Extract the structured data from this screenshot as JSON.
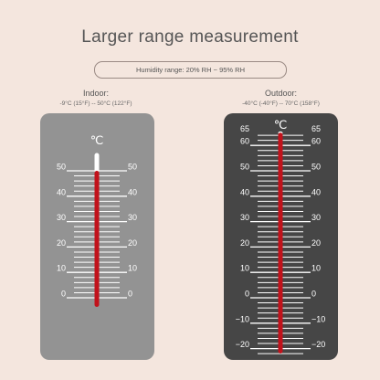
{
  "title": "Larger range measurement",
  "humidity_range": "Humidity range: 20% RH ~ 95% RH",
  "thermometers": [
    {
      "name": "Indoor:",
      "range": "-9°C (15°F) -- 50°C (122°F)",
      "unit": "℃",
      "panel_color": "#939393",
      "scale_labels": [
        "0",
        "10",
        "20",
        "30",
        "40",
        "50"
      ],
      "reading": 50
    },
    {
      "name": "Outdoor:",
      "range": "-40°C (-40°F) -- 70°C (158°F)",
      "unit": "℃",
      "panel_color": "#464646",
      "scale_labels": [
        "-20",
        "-10",
        "0",
        "10",
        "20",
        "30",
        "40",
        "50",
        "60",
        "65"
      ],
      "reading": 65
    }
  ],
  "colors": {
    "background": "#f4e6de",
    "mercury": "#c1121b",
    "tick": "#ffffff"
  }
}
